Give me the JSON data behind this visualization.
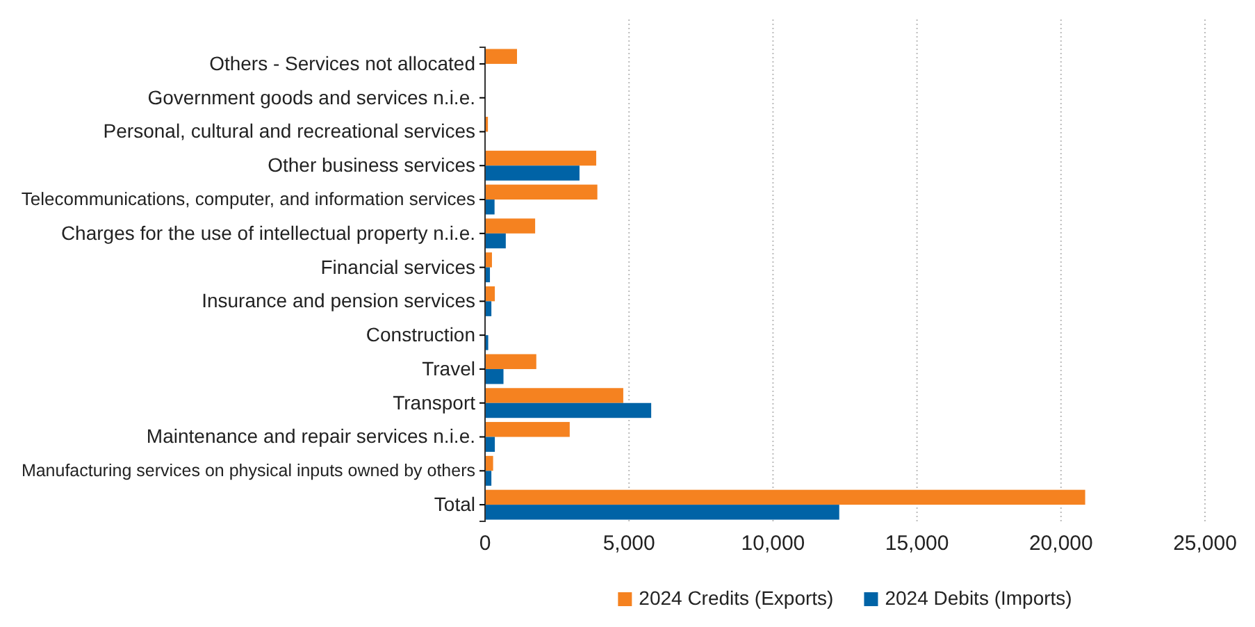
{
  "chart_data": {
    "type": "bar",
    "orientation": "horizontal",
    "categories": [
      "Others - Services not allocated",
      "Government goods and services n.i.e.",
      "Personal, cultural and recreational services",
      "Other business services",
      "Telecommunications, computer, and information services",
      "Charges for the use of intellectual property n.i.e.",
      "Financial services",
      "Insurance and pension services",
      "Construction",
      "Travel",
      "Transport",
      "Maintenance and repair services n.i.e.",
      "Manufacturing services on physical inputs owned by others",
      "Total"
    ],
    "series": [
      {
        "name": "2024 Credits (Exports)",
        "color": "#f58220",
        "values": [
          1110,
          null,
          100,
          3860,
          3900,
          1740,
          240,
          340,
          null,
          1780,
          4800,
          2940,
          280,
          20840
        ]
      },
      {
        "name": "2024 Debits (Imports)",
        "color": "#0063a6",
        "values": [
          null,
          20,
          20,
          3280,
          330,
          720,
          170,
          220,
          110,
          640,
          5770,
          340,
          220,
          12300
        ]
      }
    ],
    "xlim": [
      0,
      25000
    ],
    "xticks": [
      {
        "value": 0,
        "label": "0"
      },
      {
        "value": 5000,
        "label": "5,000"
      },
      {
        "value": 10000,
        "label": "10,000"
      },
      {
        "value": 15000,
        "label": "15,000"
      },
      {
        "value": 20000,
        "label": "20,000"
      },
      {
        "value": 25000,
        "label": "25,000"
      }
    ],
    "grid": "x",
    "legend": "bottom"
  }
}
